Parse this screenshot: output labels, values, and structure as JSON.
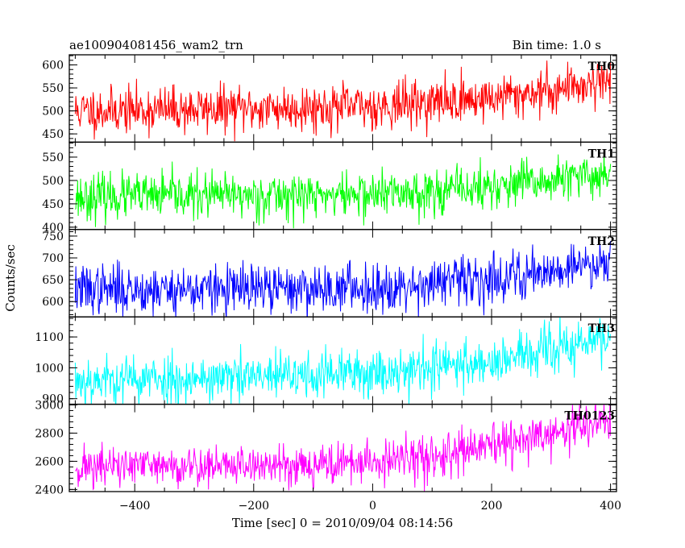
{
  "chart_data": {
    "type": "line",
    "title_left": "ae100904081456_wam2_trn",
    "title_right": "Bin time: 1.0 s",
    "xlabel": "Time [sec] 0 = 2010/09/04 08:14:56",
    "ylabel": "Counts/sec",
    "xlim": [
      -510,
      410
    ],
    "x_ticks": [
      -400,
      -200,
      0,
      200,
      400
    ],
    "x_tick_labels": [
      "−400",
      "−200",
      "0",
      "200",
      "400"
    ],
    "bin_time_s": 1.0,
    "x_range": [
      -500,
      400
    ],
    "panels": [
      {
        "name": "TH0",
        "color": "#ff0000",
        "ylim": [
          432,
          622
        ],
        "y_ticks": [
          450,
          500,
          550,
          600
        ],
        "trend": [
          [
            -500,
            500
          ],
          [
            -200,
            505
          ],
          [
            0,
            510
          ],
          [
            200,
            528
          ],
          [
            300,
            545
          ],
          [
            400,
            570
          ]
        ],
        "noise": 25,
        "seed": 11
      },
      {
        "name": "TH1",
        "color": "#00ff00",
        "ylim": [
          395,
          582
        ],
        "y_ticks": [
          400,
          450,
          500,
          550
        ],
        "trend": [
          [
            -500,
            465
          ],
          [
            -200,
            468
          ],
          [
            0,
            470
          ],
          [
            200,
            485
          ],
          [
            300,
            498
          ],
          [
            400,
            515
          ]
        ],
        "noise": 24,
        "seed": 23
      },
      {
        "name": "TH2",
        "color": "#0000ff",
        "ylim": [
          565,
          765
        ],
        "y_ticks": [
          600,
          650,
          700,
          750
        ],
        "trend": [
          [
            -500,
            628
          ],
          [
            -200,
            628
          ],
          [
            0,
            632
          ],
          [
            200,
            652
          ],
          [
            300,
            672
          ],
          [
            400,
            695
          ]
        ],
        "noise": 28,
        "seed": 37
      },
      {
        "name": "TH3",
        "color": "#00ffff",
        "ylim": [
          882,
          1165
        ],
        "y_ticks": [
          900,
          1000,
          1100
        ],
        "trend": [
          [
            -500,
            960
          ],
          [
            -200,
            968
          ],
          [
            0,
            985
          ],
          [
            200,
            1020
          ],
          [
            300,
            1055
          ],
          [
            400,
            1100
          ]
        ],
        "noise": 40,
        "seed": 53
      },
      {
        "name": "TH0123",
        "color": "#ff00ff",
        "ylim": [
          2385,
          3005
        ],
        "y_ticks": [
          2400,
          2600,
          2800,
          3000
        ],
        "trend": [
          [
            -500,
            2560
          ],
          [
            -200,
            2570
          ],
          [
            0,
            2590
          ],
          [
            100,
            2630
          ],
          [
            200,
            2700
          ],
          [
            300,
            2790
          ],
          [
            400,
            2900
          ]
        ],
        "noise": 75,
        "seed": 71
      }
    ]
  }
}
